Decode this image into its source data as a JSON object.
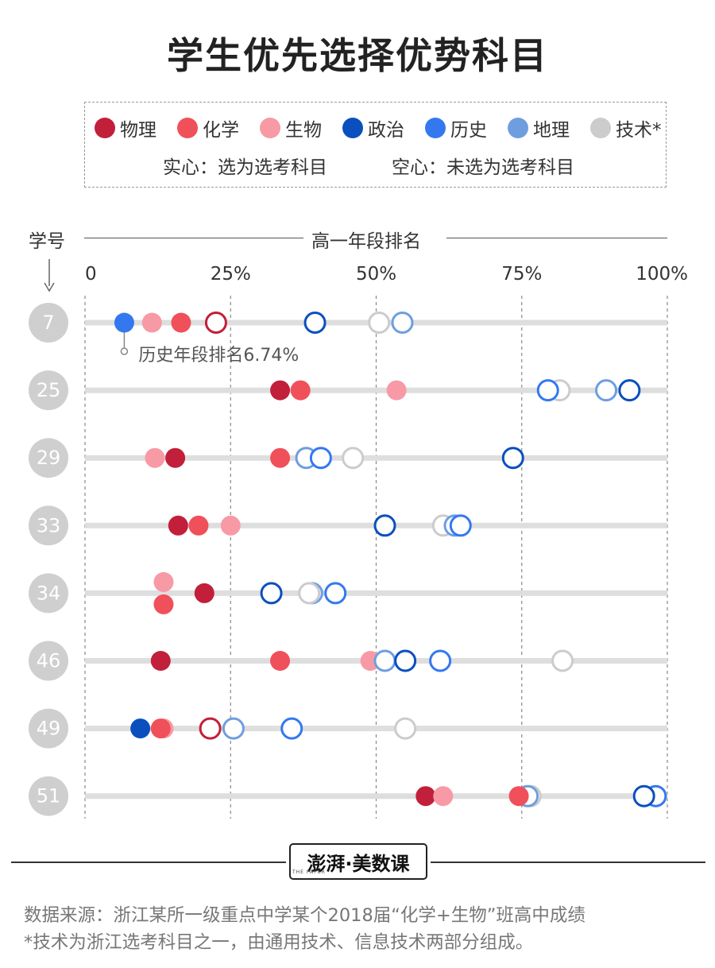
{
  "title": "学生优先选择优势科目",
  "legend": {
    "subjects": [
      {
        "name": "物理",
        "color": "#c21f3a"
      },
      {
        "name": "化学",
        "color": "#f0505a"
      },
      {
        "name": "生物",
        "color": "#f79aa5"
      },
      {
        "name": "政治",
        "color": "#0b4fbe"
      },
      {
        "name": "历史",
        "color": "#3478f0"
      },
      {
        "name": "地理",
        "color": "#6e9ee0"
      },
      {
        "name": "技术*",
        "color": "#cccccc"
      }
    ],
    "solid_note": "实心：选为选考科目",
    "hollow_note": "空心：未选为选考科目"
  },
  "axis": {
    "student_id_label": "学号",
    "rank_label": "高一年段排名"
  },
  "annotation": "历史年段排名6.74%",
  "chart_data": {
    "type": "scatter",
    "x_axis": {
      "range": [
        0,
        100
      ],
      "ticks": [
        "0",
        "25%",
        "50%",
        "75%",
        "100%"
      ]
    },
    "y_axis": {
      "label": "学号"
    },
    "students": [
      {
        "id": "7",
        "points": [
          {
            "subject": "历史",
            "rank": 6.74,
            "selected": true
          },
          {
            "subject": "生物",
            "rank": 11.5,
            "selected": true
          },
          {
            "subject": "化学",
            "rank": 16.5,
            "selected": true
          },
          {
            "subject": "物理",
            "rank": 22.5,
            "selected": false
          },
          {
            "subject": "政治",
            "rank": 39.5,
            "selected": false
          },
          {
            "subject": "技术*",
            "rank": 50.5,
            "selected": false
          },
          {
            "subject": "地理",
            "rank": 54.5,
            "selected": false
          }
        ]
      },
      {
        "id": "25",
        "points": [
          {
            "subject": "物理",
            "rank": 33.5,
            "selected": true
          },
          {
            "subject": "化学",
            "rank": 37,
            "selected": true
          },
          {
            "subject": "生物",
            "rank": 53.5,
            "selected": true
          },
          {
            "subject": "技术*",
            "rank": 81.5,
            "selected": false
          },
          {
            "subject": "历史",
            "rank": 79.5,
            "selected": false
          },
          {
            "subject": "地理",
            "rank": 89.5,
            "selected": false
          },
          {
            "subject": "政治",
            "rank": 93.5,
            "selected": false
          }
        ]
      },
      {
        "id": "29",
        "points": [
          {
            "subject": "生物",
            "rank": 12,
            "selected": true
          },
          {
            "subject": "物理",
            "rank": 15.5,
            "selected": true
          },
          {
            "subject": "化学",
            "rank": 33.5,
            "selected": true
          },
          {
            "subject": "地理",
            "rank": 38,
            "selected": false
          },
          {
            "subject": "历史",
            "rank": 40.5,
            "selected": false
          },
          {
            "subject": "技术*",
            "rank": 46,
            "selected": false
          },
          {
            "subject": "政治",
            "rank": 73.5,
            "selected": false
          }
        ]
      },
      {
        "id": "33",
        "points": [
          {
            "subject": "物理",
            "rank": 16,
            "selected": true
          },
          {
            "subject": "化学",
            "rank": 19.5,
            "selected": true
          },
          {
            "subject": "生物",
            "rank": 25,
            "selected": true
          },
          {
            "subject": "政治",
            "rank": 51.5,
            "selected": false
          },
          {
            "subject": "技术*",
            "rank": 61.5,
            "selected": false
          },
          {
            "subject": "地理",
            "rank": 63.5,
            "selected": false
          },
          {
            "subject": "历史",
            "rank": 64.5,
            "selected": false
          }
        ]
      },
      {
        "id": "34",
        "points": [
          {
            "subject": "生物",
            "rank": 13.5,
            "selected": true
          },
          {
            "subject": "化学",
            "rank": 13.5,
            "selected": true
          },
          {
            "subject": "物理",
            "rank": 20.5,
            "selected": true
          },
          {
            "subject": "政治",
            "rank": 32,
            "selected": false
          },
          {
            "subject": "地理",
            "rank": 39,
            "selected": false
          },
          {
            "subject": "技术*",
            "rank": 38.5,
            "selected": false
          },
          {
            "subject": "历史",
            "rank": 43,
            "selected": false
          }
        ]
      },
      {
        "id": "46",
        "points": [
          {
            "subject": "物理",
            "rank": 13,
            "selected": true
          },
          {
            "subject": "化学",
            "rank": 33.5,
            "selected": true
          },
          {
            "subject": "生物",
            "rank": 49,
            "selected": true
          },
          {
            "subject": "地理",
            "rank": 51.5,
            "selected": false
          },
          {
            "subject": "政治",
            "rank": 55,
            "selected": false
          },
          {
            "subject": "历史",
            "rank": 61,
            "selected": false
          },
          {
            "subject": "技术*",
            "rank": 82,
            "selected": false
          }
        ]
      },
      {
        "id": "49",
        "points": [
          {
            "subject": "政治",
            "rank": 9.5,
            "selected": true
          },
          {
            "subject": "生物",
            "rank": 13.5,
            "selected": true
          },
          {
            "subject": "化学",
            "rank": 13,
            "selected": true
          },
          {
            "subject": "物理",
            "rank": 21.5,
            "selected": false
          },
          {
            "subject": "地理",
            "rank": 25.5,
            "selected": false
          },
          {
            "subject": "历史",
            "rank": 35.5,
            "selected": false
          },
          {
            "subject": "技术*",
            "rank": 55,
            "selected": false
          }
        ]
      },
      {
        "id": "51",
        "points": [
          {
            "subject": "物理",
            "rank": 58.5,
            "selected": true
          },
          {
            "subject": "生物",
            "rank": 61.5,
            "selected": true
          },
          {
            "subject": "技术*",
            "rank": 76.5,
            "selected": false
          },
          {
            "subject": "地理",
            "rank": 76,
            "selected": false
          },
          {
            "subject": "化学",
            "rank": 74.5,
            "selected": true
          },
          {
            "subject": "历史",
            "rank": 98,
            "selected": false
          },
          {
            "subject": "政治",
            "rank": 96,
            "selected": false
          }
        ]
      }
    ]
  },
  "brand": {
    "logo_text": "澎湃·美数课",
    "logo_subtitle": "THE PAPER"
  },
  "source_lines": [
    "数据来源：浙江某所一级重点中学某个2018届“化学+生物”班高中成绩",
    "*技术为浙江选考科目之一，由通用技术、信息技术两部分组成。"
  ]
}
